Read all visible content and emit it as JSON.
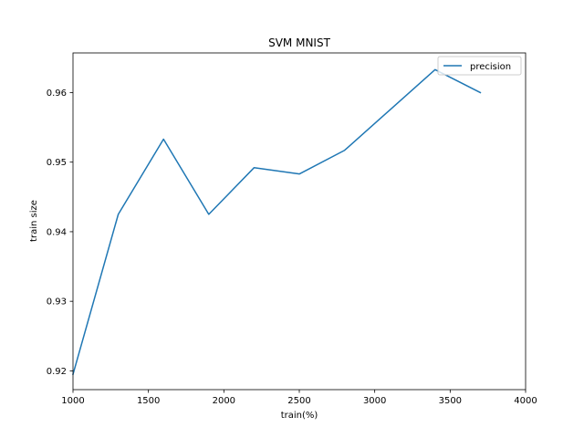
{
  "chart_data": {
    "type": "line",
    "title": "SVM MNIST",
    "xlabel": "train(%)",
    "ylabel": "train size",
    "xlim": [
      1000,
      4000
    ],
    "ylim": [
      0.9173,
      0.9657
    ],
    "xticks": [
      1000,
      1500,
      2000,
      2500,
      3000,
      3500,
      4000
    ],
    "yticks": [
      0.92,
      0.93,
      0.94,
      0.95,
      0.96
    ],
    "ytick_labels": [
      "0.92",
      "0.93",
      "0.94",
      "0.95",
      "0.96"
    ],
    "grid": false,
    "legend_position": "top-right",
    "series": [
      {
        "name": "precision",
        "color": "#1f77b4",
        "x": [
          1000,
          1300,
          1600,
          1900,
          2200,
          2500,
          2800,
          3100,
          3400,
          3700
        ],
        "y": [
          0.9195,
          0.9425,
          0.9533,
          0.9425,
          0.9492,
          0.9483,
          0.9517,
          0.9575,
          0.9633,
          0.96
        ]
      }
    ]
  }
}
